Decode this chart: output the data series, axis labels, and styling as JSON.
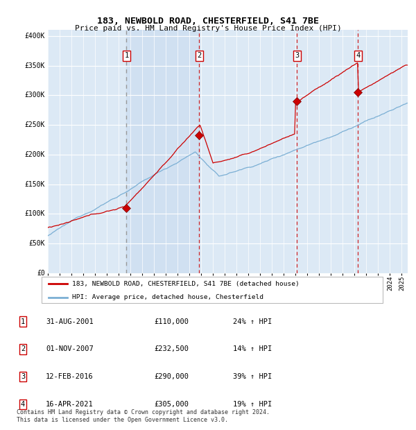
{
  "title1": "183, NEWBOLD ROAD, CHESTERFIELD, S41 7BE",
  "title2": "Price paid vs. HM Land Registry's House Price Index (HPI)",
  "ylabel_ticks": [
    "£0",
    "£50K",
    "£100K",
    "£150K",
    "£200K",
    "£250K",
    "£300K",
    "£350K",
    "£400K"
  ],
  "ytick_vals": [
    0,
    50000,
    100000,
    150000,
    200000,
    250000,
    300000,
    350000,
    400000
  ],
  "xlim_start": 1995.0,
  "xlim_end": 2025.5,
  "ylim_min": 0,
  "ylim_max": 410000,
  "transactions": [
    {
      "num": 1,
      "date_label": "31-AUG-2001",
      "price": 110000,
      "price_str": "£110,000",
      "pct": "24%",
      "year": 2001.667
    },
    {
      "num": 2,
      "date_label": "01-NOV-2007",
      "price": 232500,
      "price_str": "£232,500",
      "pct": "14%",
      "year": 2007.833
    },
    {
      "num": 3,
      "date_label": "12-FEB-2016",
      "price": 290000,
      "price_str": "£290,000",
      "pct": "39%",
      "year": 2016.117
    },
    {
      "num": 4,
      "date_label": "16-APR-2021",
      "price": 305000,
      "price_str": "£305,000",
      "pct": "19%",
      "year": 2021.292
    }
  ],
  "legend_line1": "183, NEWBOLD ROAD, CHESTERFIELD, S41 7BE (detached house)",
  "legend_line2": "HPI: Average price, detached house, Chesterfield",
  "footer1": "Contains HM Land Registry data © Crown copyright and database right 2024.",
  "footer2": "This data is licensed under the Open Government Licence v3.0.",
  "bg_color": "#dce9f5",
  "grid_color": "#ffffff",
  "hpi_line_color": "#7bafd4",
  "price_line_color": "#cc0000",
  "span_color": "#c5d8ee",
  "marker_color": "#990000",
  "box_edge_color": "#cc0000"
}
